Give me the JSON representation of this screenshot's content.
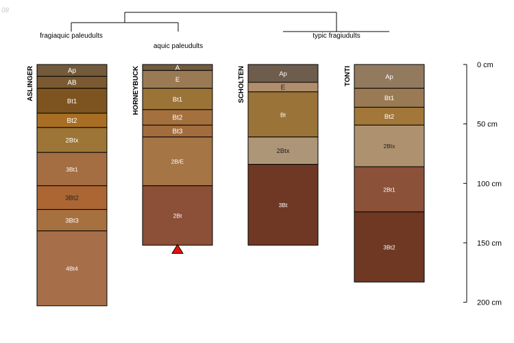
{
  "corner_text": "08",
  "dendrogram_labels": [
    {
      "id": "fragiaquic",
      "text": "fragiaquic paleudults"
    },
    {
      "id": "aquic",
      "text": "aquic paleudults"
    },
    {
      "id": "typic",
      "text": "typic fragiudults"
    }
  ],
  "profiles": [
    {
      "name": "ASLINGER",
      "horizons": [
        {
          "name": "Ap",
          "top": 0,
          "bottom": 10,
          "color": "#735a3b",
          "label_color": "#ffffff"
        },
        {
          "name": "AB",
          "top": 10,
          "bottom": 20,
          "color": "#7b5a31",
          "label_color": "#ffffff"
        },
        {
          "name": "Bt1",
          "top": 20,
          "bottom": 41,
          "color": "#7d541f",
          "label_color": "#ffffff"
        },
        {
          "name": "Bt2",
          "top": 41,
          "bottom": 53,
          "color": "#a86f24",
          "label_color": "#ffffff"
        },
        {
          "name": "2Btx",
          "top": 53,
          "bottom": 74,
          "color": "#9c7537",
          "label_color": "#ffffff"
        },
        {
          "name": "3Bt1",
          "top": 74,
          "bottom": 102,
          "color": "#a46e42",
          "label_color": "#ffffff"
        },
        {
          "name": "3Bt2",
          "top": 102,
          "bottom": 122,
          "color": "#ab6633",
          "label_color": "#222222"
        },
        {
          "name": "3Bt3",
          "top": 122,
          "bottom": 140,
          "color": "#a6703f",
          "label_color": "#ffffff"
        },
        {
          "name": "4Bt4",
          "top": 140,
          "bottom": 203,
          "color": "#a66f4a",
          "label_color": "#ffffff"
        }
      ]
    },
    {
      "name": "HORNEYBUCK",
      "horizons": [
        {
          "name": "A",
          "top": 0,
          "bottom": 5,
          "color": "#735b3d",
          "label_color": "#ffffff"
        },
        {
          "name": "E",
          "top": 5,
          "bottom": 20,
          "color": "#9a7a55",
          "label_color": "#ffffff"
        },
        {
          "name": "Bt1",
          "top": 20,
          "bottom": 38,
          "color": "#9a7336",
          "label_color": "#ffffff"
        },
        {
          "name": "Bt2",
          "top": 38,
          "bottom": 51,
          "color": "#a3703e",
          "label_color": "#ffffff"
        },
        {
          "name": "Bt3",
          "top": 51,
          "bottom": 61,
          "color": "#a36c3d",
          "label_color": "#ffffff"
        },
        {
          "name": "2B/E",
          "top": 61,
          "bottom": 102,
          "color": "#a57545",
          "label_color": "#ffffff"
        },
        {
          "name": "2Bt",
          "top": 102,
          "bottom": 152,
          "color": "#8c4f38",
          "label_color": "#ffffff"
        }
      ]
    },
    {
      "name": "SCHOLTEN",
      "horizons": [
        {
          "name": "Ap",
          "top": 0,
          "bottom": 15,
          "color": "#6e5c4c",
          "label_color": "#ffffff"
        },
        {
          "name": "E",
          "top": 15,
          "bottom": 23,
          "color": "#b08e6c",
          "label_color": "#222222"
        },
        {
          "name": "Bt",
          "top": 23,
          "bottom": 61,
          "color": "#9a7339",
          "label_color": "#ffffff"
        },
        {
          "name": "2Btx",
          "top": 61,
          "bottom": 84,
          "color": "#ad9578",
          "label_color": "#222222"
        },
        {
          "name": "3Bt",
          "top": 84,
          "bottom": 152,
          "color": "#6f3824",
          "label_color": "#ffffff"
        }
      ]
    },
    {
      "name": "TONTI",
      "horizons": [
        {
          "name": "Ap",
          "top": 0,
          "bottom": 20,
          "color": "#927a5f",
          "label_color": "#ffffff"
        },
        {
          "name": "Bt1",
          "top": 20,
          "bottom": 36,
          "color": "#9a7a55",
          "label_color": "#ffffff"
        },
        {
          "name": "Bt2",
          "top": 36,
          "bottom": 51,
          "color": "#a27739",
          "label_color": "#ffffff"
        },
        {
          "name": "2Btx",
          "top": 51,
          "bottom": 86,
          "color": "#ae926f",
          "label_color": "#222222"
        },
        {
          "name": "2Bt1",
          "top": 86,
          "bottom": 124,
          "color": "#8b5139",
          "label_color": "#ffffff"
        },
        {
          "name": "3Bt2",
          "top": 124,
          "bottom": 183,
          "color": "#6f3823",
          "label_color": "#ffffff"
        }
      ]
    }
  ],
  "depth_axis": {
    "ticks": [
      {
        "value": 0,
        "label": "0 cm"
      },
      {
        "value": 50,
        "label": "50 cm"
      },
      {
        "value": 100,
        "label": "100 cm"
      },
      {
        "value": 150,
        "label": "150 cm"
      },
      {
        "value": 200,
        "label": "200 cm"
      }
    ]
  },
  "marker": {
    "profile": "HORNEYBUCK",
    "depth": 152,
    "color": "#e8100b"
  }
}
